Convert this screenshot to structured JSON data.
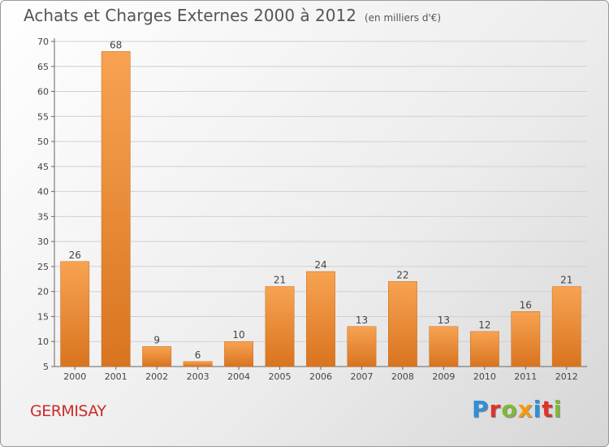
{
  "header": {
    "title": "Achats et Charges Externes 2000 à 2012",
    "unit": "(en milliers d'€)"
  },
  "footer": {
    "commune": "GERMISAY",
    "logo_text": "Proxiti",
    "logo_colors": [
      "#2f8fd8",
      "#e0312b",
      "#7fb83a",
      "#f39c12",
      "#2f8fd8",
      "#e0312b",
      "#7fb83a"
    ]
  },
  "chart_data": {
    "type": "bar",
    "title": "Achats et Charges Externes 2000 à 2012",
    "subtitle": "(en milliers d'€)",
    "categories": [
      "2000",
      "2001",
      "2002",
      "2003",
      "2004",
      "2005",
      "2006",
      "2007",
      "2008",
      "2009",
      "2010",
      "2011",
      "2012"
    ],
    "values": [
      26,
      68,
      9,
      6,
      10,
      21,
      24,
      13,
      22,
      13,
      12,
      16,
      21
    ],
    "ylim": [
      5,
      70
    ],
    "yticks": [
      5,
      10,
      15,
      20,
      25,
      30,
      35,
      40,
      45,
      50,
      55,
      60,
      65,
      70
    ],
    "grid": true,
    "bar_color": "#f0953a",
    "xlabel": "",
    "ylabel": ""
  }
}
